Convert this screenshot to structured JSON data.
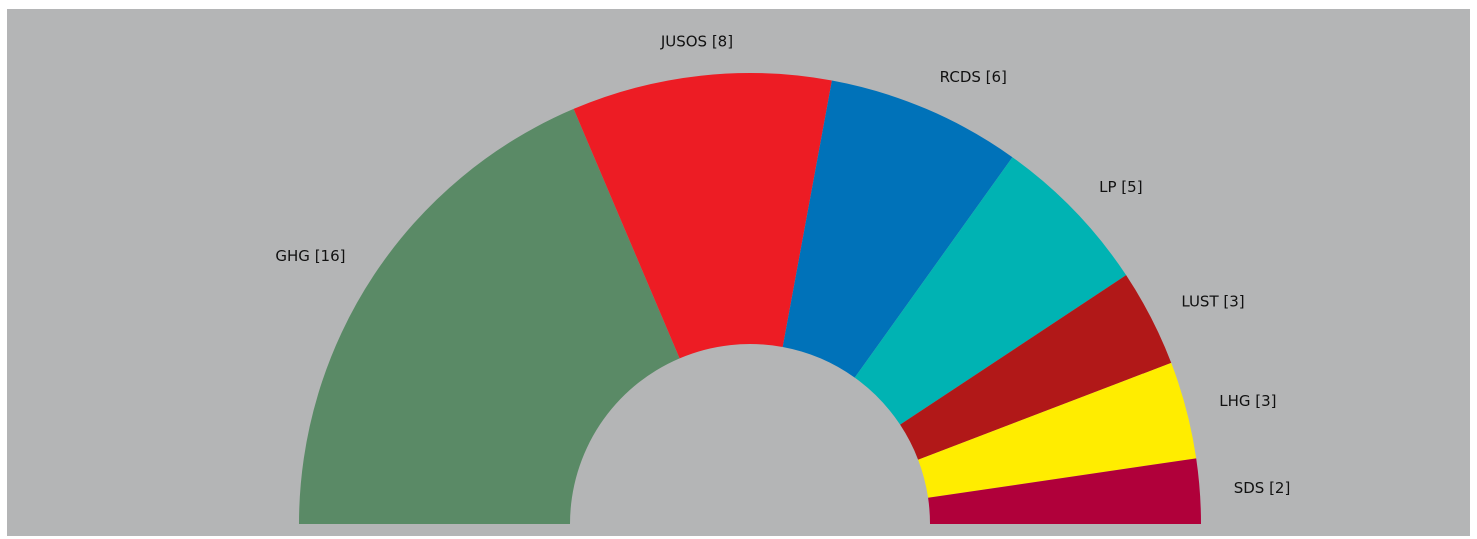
{
  "chart_data": {
    "type": "parliament-semicircle",
    "background_color": "#b4b5b6",
    "total_seats": 43,
    "parties": [
      {
        "name": "GHG",
        "seats": 16,
        "label": "GHG [16]",
        "color": "#5a8a66"
      },
      {
        "name": "JUSOS",
        "seats": 8,
        "label": "JUSOS [8]",
        "color": "#ed1c24"
      },
      {
        "name": "RCDS",
        "seats": 6,
        "label": "RCDS [6]",
        "color": "#0072b9"
      },
      {
        "name": "LP",
        "seats": 5,
        "label": "LP [5]",
        "color": "#00b3b3"
      },
      {
        "name": "LUST",
        "seats": 3,
        "label": "LUST [3]",
        "color": "#b11818"
      },
      {
        "name": "LHG",
        "seats": 3,
        "label": "LHG [3]",
        "color": "#ffed00"
      },
      {
        "name": "SDS",
        "seats": 2,
        "label": "SDS [2]",
        "color": "#b0003a"
      }
    ]
  }
}
